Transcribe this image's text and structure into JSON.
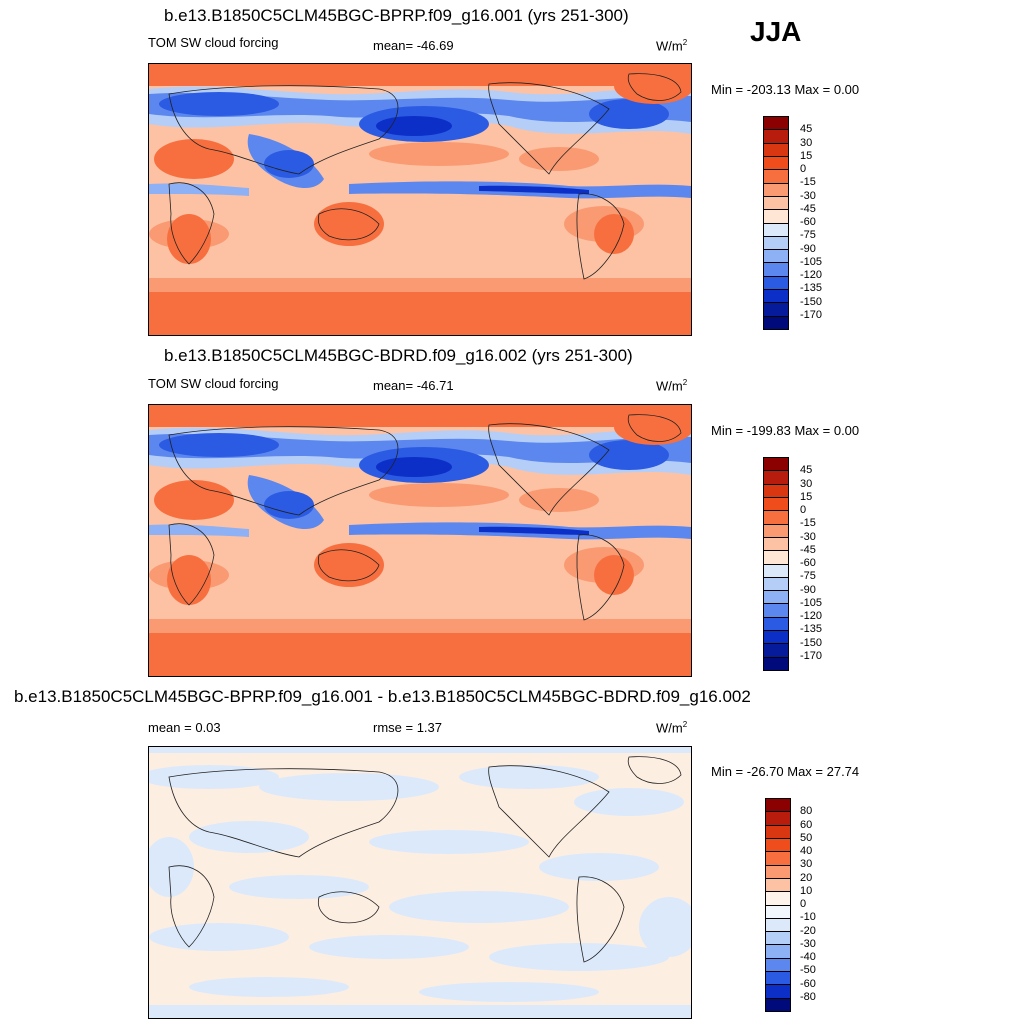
{
  "season": "JJA",
  "panels": [
    {
      "title": "b.e13.B1850C5CLM45BGC-BPRP.f09_g16.001 (yrs 251-300)",
      "left_label": "TOM SW cloud forcing",
      "center_label": "mean= -46.69",
      "units_base": "W/m",
      "units_sup": "2",
      "minmax": "Min = -203.13 Max =   0.00",
      "levels": [
        "45",
        "30",
        "15",
        "0",
        "-15",
        "-30",
        "-45",
        "-60",
        "-75",
        "-90",
        "-105",
        "-120",
        "-135",
        "-150",
        "-170"
      ],
      "colors": [
        "#8b0000",
        "#b71c0c",
        "#d93612",
        "#f04d1c",
        "#f76f3f",
        "#fa9a72",
        "#fdc2a4",
        "#ffe6d5",
        "#dce9fb",
        "#b5cef8",
        "#8eb0f5",
        "#5c87ee",
        "#2b5be3",
        "#0c2fc8",
        "#061b9b",
        "#000a7a"
      ],
      "map_kind": "forcing"
    },
    {
      "title": "b.e13.B1850C5CLM45BGC-BDRD.f09_g16.002 (yrs 251-300)",
      "left_label": "TOM SW cloud forcing",
      "center_label": "mean= -46.71",
      "units_base": "W/m",
      "units_sup": "2",
      "minmax": "Min = -199.83 Max =   0.00",
      "levels": [
        "45",
        "30",
        "15",
        "0",
        "-15",
        "-30",
        "-45",
        "-60",
        "-75",
        "-90",
        "-105",
        "-120",
        "-135",
        "-150",
        "-170"
      ],
      "colors": [
        "#8b0000",
        "#b71c0c",
        "#d93612",
        "#f04d1c",
        "#f76f3f",
        "#fa9a72",
        "#fdc2a4",
        "#ffe6d5",
        "#dce9fb",
        "#b5cef8",
        "#8eb0f5",
        "#5c87ee",
        "#2b5be3",
        "#0c2fc8",
        "#061b9b",
        "#000a7a"
      ],
      "map_kind": "forcing"
    },
    {
      "title": "b.e13.B1850C5CLM45BGC-BPRP.f09_g16.001 - b.e13.B1850C5CLM45BGC-BDRD.f09_g16.002",
      "left_label": "mean =   0.03",
      "center_label": "rmse =   1.37",
      "units_base": "W/m",
      "units_sup": "2",
      "minmax": "Min = -26.70 Max =  27.74",
      "levels": [
        "80",
        "60",
        "50",
        "40",
        "30",
        "20",
        "10",
        "0",
        "-10",
        "-20",
        "-30",
        "-40",
        "-50",
        "-60",
        "-80"
      ],
      "colors": [
        "#8b0000",
        "#b71c0c",
        "#d93612",
        "#f04d1c",
        "#f76f3f",
        "#fa9a72",
        "#fdc2a4",
        "#fff4ec",
        "#f2f6fd",
        "#dce9fb",
        "#b5cef8",
        "#8eb0f5",
        "#5c87ee",
        "#2b5be3",
        "#0c2fc8",
        "#000a7a"
      ],
      "map_kind": "diff"
    }
  ]
}
